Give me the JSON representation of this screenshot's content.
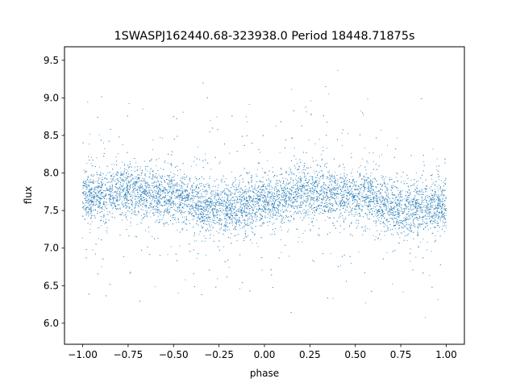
{
  "chart_data": {
    "type": "scatter",
    "title": "1SWASPJ162440.68-323938.0 Period 18448.71875s",
    "xlabel": "phase",
    "ylabel": "flux",
    "xlim": [
      -1.1,
      1.1
    ],
    "ylim": [
      5.72,
      9.68
    ],
    "x_ticks": [
      -1.0,
      -0.75,
      -0.5,
      -0.25,
      0.0,
      0.25,
      0.5,
      0.75,
      1.0
    ],
    "x_tick_labels": [
      "−1.00",
      "−0.75",
      "−0.50",
      "−0.25",
      "0.00",
      "0.25",
      "0.50",
      "0.75",
      "1.00"
    ],
    "y_ticks": [
      6.0,
      6.5,
      7.0,
      7.5,
      8.0,
      8.5,
      9.0,
      9.5
    ],
    "y_tick_labels": [
      "6.0",
      "6.5",
      "7.0",
      "7.5",
      "8.0",
      "8.5",
      "9.0",
      "9.5"
    ],
    "grid": false,
    "series": [
      {
        "color": "#1f77b4",
        "marker": "dot",
        "x_range": [
          -1.0,
          1.0
        ],
        "y_range": [
          5.9,
          9.4
        ],
        "phase_profile": {
          "phase": [
            -1.0,
            -0.75,
            -0.5,
            -0.25,
            0.0,
            0.25,
            0.5,
            0.75,
            1.0
          ],
          "mean_flux": [
            7.68,
            7.76,
            7.68,
            7.52,
            7.6,
            7.75,
            7.68,
            7.52,
            7.58
          ]
        },
        "core_scatter": 0.17
      }
    ]
  }
}
